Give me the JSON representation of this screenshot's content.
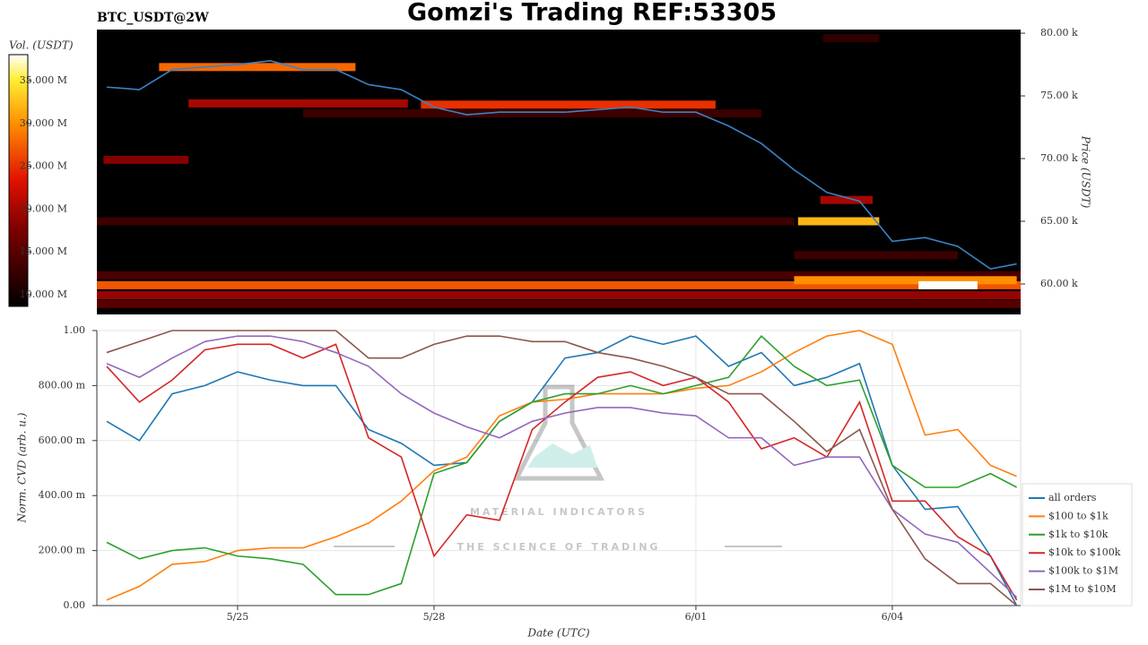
{
  "chart_data": [
    {
      "type": "heatmap",
      "title": "Gomzi's Trading REF:53305",
      "subtitle": "BTC_USDT@2W",
      "y_label": "Price (USDT)",
      "colorbar_label": "Vol. (USDT)",
      "colormap": "hot",
      "xlim": [
        143.85,
        157.96
      ],
      "ylim": [
        57570,
        80290
      ],
      "yticks": [
        {
          "value": 60000,
          "label": "60.00 k"
        },
        {
          "value": 65000,
          "label": "65.00 k"
        },
        {
          "value": 70000,
          "label": "70.00 k"
        },
        {
          "value": 75000,
          "label": "75.00 k"
        },
        {
          "value": 80000,
          "label": "80.00 k"
        }
      ],
      "zlim": [
        8640000,
        38030000
      ],
      "zticks": [
        {
          "value": 10000000,
          "label": "10.000 M"
        },
        {
          "value": 15000000,
          "label": "15.000 M"
        },
        {
          "value": 20000000,
          "label": "20.000 M"
        },
        {
          "value": 25000000,
          "label": "25.000 M"
        },
        {
          "value": 30000000,
          "label": "30.000 M"
        },
        {
          "value": 35000000,
          "label": "35.000 M"
        }
      ],
      "bands": {
        "price": [
          60700,
          59900,
          59100,
          58400,
          60300,
          59900,
          65000,
          65000,
          69900,
          74400,
          73600,
          77300,
          74300,
          62300,
          66700,
          79600
        ],
        "start": [
          143.85,
          143.85,
          143.85,
          143.85,
          154.5,
          156.4,
          143.85,
          154.56,
          143.95,
          145.25,
          147.0,
          144.8,
          148.8,
          154.5,
          154.9,
          154.94
        ],
        "end": [
          157.96,
          157.96,
          157.96,
          157.96,
          157.9,
          157.3,
          154.5,
          155.8,
          145.25,
          148.6,
          154.0,
          147.8,
          153.3,
          157.0,
          155.7,
          155.8
        ],
        "volume": [
          14000000,
          27000000,
          19000000,
          15000000,
          30000000,
          38000000,
          13000000,
          32000000,
          18000000,
          20000000,
          13000000,
          28000000,
          25000000,
          13000000,
          20000000,
          12000000
        ]
      },
      "price_line": {
        "color": "#3b82c4",
        "x": [
          144,
          144.5,
          145,
          145.5,
          146,
          146.5,
          147,
          147.5,
          148,
          148.5,
          149,
          149.5,
          150,
          150.5,
          151,
          151.5,
          152,
          152.5,
          153,
          153.5,
          154,
          154.5,
          155,
          155.5,
          156,
          156.5,
          157,
          157.5,
          157.9
        ],
        "values": [
          75700,
          75500,
          77100,
          77300,
          77500,
          77800,
          77100,
          77100,
          75900,
          75500,
          74100,
          73500,
          73700,
          73700,
          73700,
          73900,
          74100,
          73700,
          73700,
          72600,
          71200,
          69100,
          67300,
          66600,
          63400,
          63700,
          63000,
          61200,
          61600
        ]
      }
    },
    {
      "type": "line",
      "x_label": "Date (UTC)",
      "y_label": "Norm. CVD (arb. u.)",
      "watermark": "MATERIAL INDICATORS",
      "watermark_sub": "THE SCIENCE OF TRADING",
      "grid": true,
      "legend": "right",
      "xlim": [
        143.85,
        157.96
      ],
      "xticks": [
        {
          "value": 146,
          "label": "5/25"
        },
        {
          "value": 149,
          "label": "5/28"
        },
        {
          "value": 153,
          "label": "6/01"
        },
        {
          "value": 156,
          "label": "6/04"
        }
      ],
      "ylim": [
        0,
        1
      ],
      "yticks": [
        {
          "value": 0,
          "label": "0.00"
        },
        {
          "value": 0.2,
          "label": "200.00 m"
        },
        {
          "value": 0.4,
          "label": "400.00 m"
        },
        {
          "value": 0.6,
          "label": "600.00 m"
        },
        {
          "value": 0.8,
          "label": "800.00 m"
        },
        {
          "value": 1,
          "label": "1.00"
        }
      ],
      "x": [
        144,
        144.5,
        145,
        145.5,
        146,
        146.5,
        147,
        147.5,
        148,
        148.5,
        149,
        149.5,
        150,
        150.5,
        151,
        151.5,
        152,
        152.5,
        153,
        153.5,
        154,
        154.5,
        155,
        155.5,
        156,
        156.5,
        157,
        157.5,
        157.9
      ],
      "series": [
        {
          "name": "all orders",
          "color": "#1f77b4",
          "values": [
            0.67,
            0.6,
            0.77,
            0.8,
            0.85,
            0.82,
            0.8,
            0.8,
            0.64,
            0.59,
            0.51,
            0.52,
            0.67,
            0.74,
            0.9,
            0.92,
            0.98,
            0.95,
            0.98,
            0.87,
            0.92,
            0.8,
            0.83,
            0.88,
            0.51,
            0.35,
            0.36,
            0.18,
            0.0
          ]
        },
        {
          "name": "$100 to $1k",
          "color": "#ff7f0e",
          "values": [
            0.02,
            0.07,
            0.15,
            0.16,
            0.2,
            0.21,
            0.21,
            0.25,
            0.3,
            0.38,
            0.49,
            0.54,
            0.69,
            0.74,
            0.75,
            0.77,
            0.77,
            0.77,
            0.79,
            0.8,
            0.85,
            0.92,
            0.98,
            1.0,
            0.95,
            0.62,
            0.64,
            0.51,
            0.47
          ]
        },
        {
          "name": "$1k to $10k",
          "color": "#2ca02c",
          "values": [
            0.23,
            0.17,
            0.2,
            0.21,
            0.18,
            0.17,
            0.15,
            0.04,
            0.04,
            0.08,
            0.48,
            0.52,
            0.67,
            0.74,
            0.77,
            0.77,
            0.8,
            0.77,
            0.8,
            0.83,
            0.98,
            0.87,
            0.8,
            0.82,
            0.51,
            0.43,
            0.43,
            0.48,
            0.43
          ]
        },
        {
          "name": "$10k to $100k",
          "color": "#d62728",
          "values": [
            0.87,
            0.74,
            0.82,
            0.93,
            0.95,
            0.95,
            0.9,
            0.95,
            0.61,
            0.54,
            0.18,
            0.33,
            0.31,
            0.64,
            0.74,
            0.83,
            0.85,
            0.8,
            0.83,
            0.74,
            0.57,
            0.61,
            0.54,
            0.74,
            0.38,
            0.38,
            0.25,
            0.18,
            0.02
          ]
        },
        {
          "name": "$100k to $1M",
          "color": "#9467bd",
          "values": [
            0.88,
            0.83,
            0.9,
            0.96,
            0.98,
            0.98,
            0.96,
            0.92,
            0.87,
            0.77,
            0.7,
            0.65,
            0.61,
            0.67,
            0.7,
            0.72,
            0.72,
            0.7,
            0.69,
            0.61,
            0.61,
            0.51,
            0.54,
            0.54,
            0.35,
            0.26,
            0.23,
            0.12,
            0.03
          ]
        },
        {
          "name": "$1M to $10M",
          "color": "#8c564b",
          "values": [
            0.92,
            0.96,
            1.0,
            1.0,
            1.0,
            1.0,
            1.0,
            1.0,
            0.9,
            0.9,
            0.95,
            0.98,
            0.98,
            0.96,
            0.96,
            0.92,
            0.9,
            0.87,
            0.83,
            0.77,
            0.77,
            0.67,
            0.56,
            0.64,
            0.35,
            0.17,
            0.08,
            0.08,
            0.0
          ]
        }
      ]
    }
  ]
}
